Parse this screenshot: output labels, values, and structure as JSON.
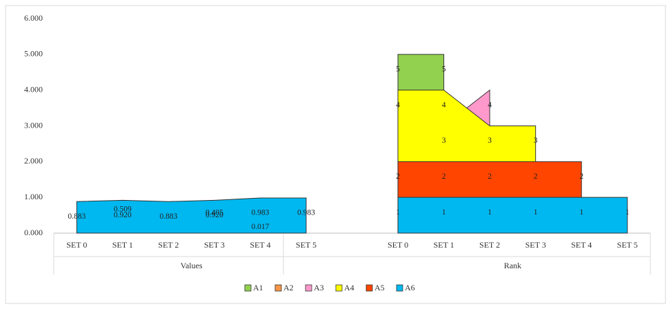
{
  "chart_data": {
    "type": "area",
    "category_groups": [
      {
        "group": "Values",
        "categories": [
          "SET 0",
          "SET 1",
          "SET 2",
          "SET 3",
          "SET 4",
          "SET 5"
        ]
      },
      {
        "group": "Rank",
        "categories": [
          "SET 0",
          "SET 1",
          "SET 2",
          "SET 3",
          "SET 4",
          "SET 5"
        ]
      }
    ],
    "ylim": [
      0,
      6
    ],
    "yticks": [
      {
        "value": 0,
        "label": "0.000"
      },
      {
        "value": 1,
        "label": "1.000"
      },
      {
        "value": 2,
        "label": "2.000"
      },
      {
        "value": 3,
        "label": "3.000"
      },
      {
        "value": 4,
        "label": "4.000"
      },
      {
        "value": 5,
        "label": "5.000"
      },
      {
        "value": 6,
        "label": "6.000"
      }
    ],
    "grid": false,
    "legend": "bottom",
    "series": [
      {
        "name": "A1",
        "color": "#92d050",
        "values": [
          null,
          null,
          null,
          null,
          null,
          null,
          5,
          5,
          null,
          null,
          null,
          null
        ]
      },
      {
        "name": "A3",
        "color": "#ff99cc",
        "values": [
          null,
          null,
          null,
          null,
          null,
          null,
          null,
          3,
          4,
          null,
          null,
          null
        ]
      },
      {
        "name": "A4",
        "color": "#ffff00",
        "values": [
          null,
          null,
          null,
          null,
          null,
          null,
          4,
          4,
          3,
          3,
          null,
          null
        ]
      },
      {
        "name": "A5",
        "color": "#ff4500",
        "values": [
          null,
          null,
          null,
          null,
          null,
          null,
          2,
          2,
          2,
          2,
          2,
          null
        ]
      },
      {
        "name": "A2",
        "color": "#f79646",
        "values": [
          null,
          0.509,
          null,
          0.405,
          0.017,
          null,
          null,
          null,
          null,
          null,
          null,
          null
        ]
      },
      {
        "name": "A6",
        "color": "#00b8f0",
        "values": [
          0.883,
          0.92,
          0.883,
          0.92,
          0.983,
          0.983,
          1,
          1,
          1,
          1,
          1,
          1
        ],
        "value_labels": [
          "0.883",
          "0.920",
          "0.883",
          "0.920",
          "0.983",
          "0.983",
          "1",
          "1",
          "1",
          "1",
          "1",
          "1"
        ]
      }
    ]
  }
}
